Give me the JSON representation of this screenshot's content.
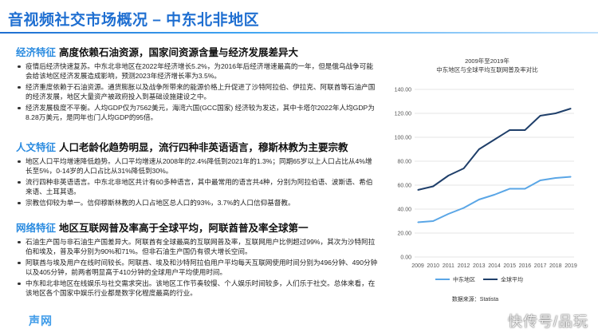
{
  "title": "音视频社交市场概况 – 中东北非地区",
  "sections": [
    {
      "tag": "经济特征",
      "headline": "高度依赖石油资源，国家间资源含量与经济发展差异大",
      "bullets": [
        "疫情后经济快速复苏。中东北非地区在2022年经济增长5.2%，为2016年后经济增速最高的一年，但是俄乌战争可能会给该地区经济发展造成影响，预测2023年经济增长率为3.5%。",
        "经济重度依赖于石油资源。通货膨胀以及战争所带来的能源价格上升促进了沙特阿拉伯、伊拉克、阿联酋等石油产国的经济发展，地区大量资产被政府投入到基础设施建设之中。",
        "经济发展极度不平衡。人均GDP仅为7562美元，海湾六国(GCC国家) 经济较为发达，其中卡塔尔2022年人均GDP为8.28万美元，是同年也门人均GDP的95倍。"
      ]
    },
    {
      "tag": "人文特征",
      "headline": "人口老龄化趋势明显，流行四种非英语语言，穆斯林教为主要宗教",
      "bullets": [
        "地区人口平均增速降低趋势。人口平均增速从2008年的2.4%降低到2021年的1.3%；同期65岁以上人口占比从4%增长至5%，0-14岁的人口占比从31%降低到30%。",
        "流行四种非英语语言。中东北非地区共计有60多种语言，其中最常用的语言共4种，分别为阿拉伯语、波斯语、希伯来语、土耳其语。",
        "宗教信仰较为单一。信仰穆斯林教的人口占地区总人口的93%，3.7%的人口信仰基督教。"
      ]
    },
    {
      "tag": "网络特征",
      "headline": "地区互联网普及率高于全球平均，阿联酋普及率全球第一",
      "bullets": [
        "石油生产国与非石油生产国差异大。阿联酋有全球最高的互联网普及率，互联网用户比例超过99%，其次为沙特阿拉伯和埃及，普及率分别为90%和71%。但非石油生产国仍有很大增长空间。",
        "阿联酋与埃及用户在线时间较长。阿联酋、埃及和沙特阿拉伯用户平均每天互联网使用时间分别为496分钟、490分钟以及405分钟，前两者明显高于410分钟的全球用户平均使用时间。",
        "中东和北非地区在线娱乐与社交需求突出。该地区工作节奏较慢、个人娱乐时间较多，人们乐于社交。总体来看，在该地区各个国家中娱乐行业都是数字化程度最高的行业。"
      ]
    }
  ],
  "brand": "声网",
  "watermark": "快传号/品玩",
  "chart_data": {
    "type": "line",
    "title": "2009年至2019年",
    "subtitle": "中东地区与全球平均互联网普及率对比",
    "x": [
      "2009",
      "2010",
      "2011",
      "2012",
      "2013",
      "2014",
      "2015",
      "2016",
      "2017",
      "2018",
      "2019"
    ],
    "ylim": [
      0,
      140
    ],
    "yticks": [
      "0.00",
      "20.00",
      "40.00",
      "60.00",
      "80.00",
      "100.00",
      "120.00",
      "140.00"
    ],
    "grid": true,
    "legend": "bottom",
    "series": [
      {
        "name": "中东地区",
        "color": "#5aa6e6",
        "values": [
          29,
          30,
          36,
          41,
          48,
          52,
          57,
          57,
          64,
          66,
          67
        ]
      },
      {
        "name": "全球平均",
        "color": "#1f3f6a",
        "values": [
          56,
          59,
          68,
          74,
          90,
          98,
          106,
          106,
          118,
          120,
          124
        ]
      }
    ],
    "source": "数据来源：Statista"
  }
}
